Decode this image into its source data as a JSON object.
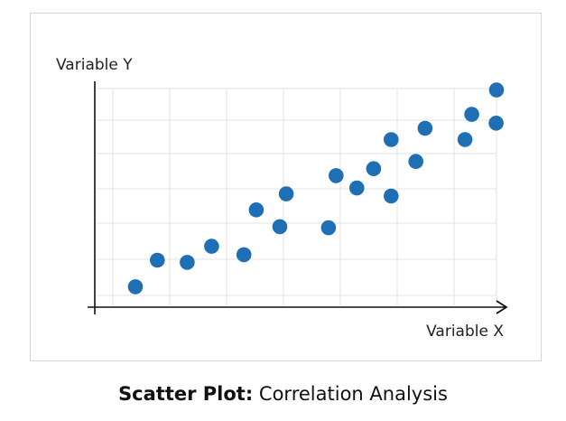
{
  "chart_data": {
    "type": "scatter",
    "caption_bold": "Scatter Plot:",
    "caption_rest": " Correlation Analysis",
    "xlabel": "Variable X",
    "ylabel": "Variable Y",
    "xlim": [
      0,
      10
    ],
    "ylim": [
      0,
      6
    ],
    "grid": true,
    "point_color": "#1f6fb5",
    "points": [
      {
        "x": 0.95,
        "y": 0.56
      },
      {
        "x": 1.5,
        "y": 1.29
      },
      {
        "x": 2.25,
        "y": 1.23
      },
      {
        "x": 2.86,
        "y": 1.67
      },
      {
        "x": 3.67,
        "y": 1.44
      },
      {
        "x": 3.98,
        "y": 2.67
      },
      {
        "x": 4.57,
        "y": 2.21
      },
      {
        "x": 4.73,
        "y": 3.11
      },
      {
        "x": 5.79,
        "y": 2.18
      },
      {
        "x": 5.98,
        "y": 3.61
      },
      {
        "x": 6.5,
        "y": 3.27
      },
      {
        "x": 6.92,
        "y": 3.8
      },
      {
        "x": 7.36,
        "y": 3.05
      },
      {
        "x": 7.36,
        "y": 4.6
      },
      {
        "x": 7.98,
        "y": 4.0
      },
      {
        "x": 8.21,
        "y": 4.91
      },
      {
        "x": 9.21,
        "y": 4.6
      },
      {
        "x": 9.38,
        "y": 5.29
      },
      {
        "x": 9.99,
        "y": 5.05
      },
      {
        "x": 10.0,
        "y": 5.96
      }
    ]
  }
}
